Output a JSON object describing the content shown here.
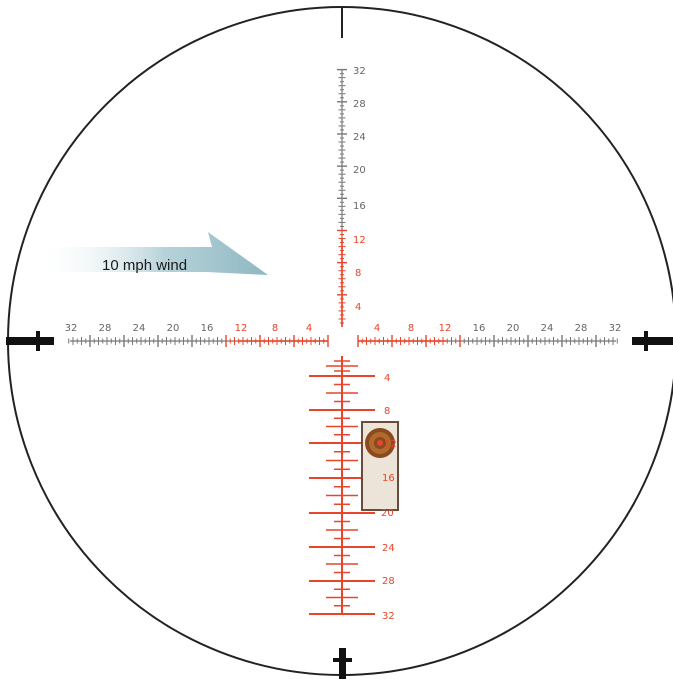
{
  "wind": {
    "label": "10 mph wind"
  },
  "vertical_scale_up": {
    "gray": [
      "32",
      "28",
      "24",
      "20",
      "16"
    ],
    "red": [
      "12",
      "8",
      "4"
    ]
  },
  "horizontal_scale_left": {
    "gray": [
      "32",
      "28",
      "24",
      "20",
      "16"
    ],
    "red": [
      "12",
      "8",
      "4"
    ]
  },
  "horizontal_scale_right": {
    "red": [
      "4",
      "8",
      "12"
    ],
    "gray": [
      "16",
      "20",
      "24",
      "28",
      "32"
    ]
  },
  "lower_holdover": {
    "labels": [
      "4",
      "8",
      "12",
      "16",
      "20",
      "24",
      "28",
      "32"
    ]
  },
  "colors": {
    "ring": "#222222",
    "gray_scale": "#777777",
    "red_scale": "#e8452a",
    "post": "#111111",
    "wind_arrow": "#9fc2cb",
    "target_fill": "#ece4d8",
    "target_border": "#6b4b3a",
    "bullseye": "#8b4a1e"
  },
  "icons": {
    "wind": "wind-arrow-icon",
    "target": "target-icon"
  }
}
